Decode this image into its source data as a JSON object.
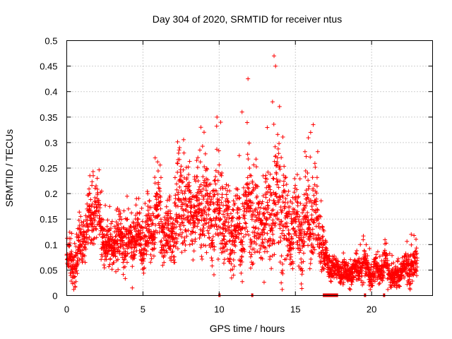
{
  "chart_data": {
    "type": "scatter",
    "title": "Day 304 of 2020, SRMTID for receiver ntus",
    "xlabel": "GPS time / hours",
    "ylabel": "SRMTID / TECUs",
    "xlim": [
      0,
      24
    ],
    "ylim": [
      0,
      0.5
    ],
    "grid": true,
    "marker": "+",
    "color": "#ff0000",
    "x_ticks": [
      0,
      5,
      10,
      15,
      20
    ],
    "x_tick_labels": [
      "0",
      "5",
      "10",
      "15",
      "20"
    ],
    "y_ticks": [
      0,
      0.05,
      0.1,
      0.15,
      0.2,
      0.25,
      0.3,
      0.35,
      0.4,
      0.45,
      0.5
    ],
    "y_tick_labels": [
      "0",
      "0.05",
      "0.1",
      "0.15",
      "0.2",
      "0.25",
      "0.3",
      "0.35",
      "0.4",
      "0.45",
      "0.5"
    ],
    "series": [
      {
        "name": "SRMTID",
        "envelope_x": [
          0,
          0.5,
          1,
          1.5,
          2,
          2.5,
          3,
          3.5,
          4,
          4.5,
          5,
          5.5,
          6,
          6.5,
          7,
          7.5,
          8,
          8.5,
          9,
          9.5,
          10,
          10.5,
          11,
          11.5,
          12,
          12.5,
          13,
          13.5,
          14,
          14.5,
          15,
          15.5,
          16,
          16.5,
          17,
          17.5,
          18,
          18.5,
          19,
          19.5,
          20,
          20.5,
          21,
          21.5,
          22,
          22.5,
          23
        ],
        "envelope_mean": [
          0.07,
          0.06,
          0.11,
          0.14,
          0.17,
          0.1,
          0.1,
          0.11,
          0.1,
          0.12,
          0.1,
          0.12,
          0.16,
          0.11,
          0.13,
          0.19,
          0.17,
          0.16,
          0.18,
          0.15,
          0.17,
          0.13,
          0.14,
          0.13,
          0.18,
          0.13,
          0.15,
          0.16,
          0.2,
          0.12,
          0.15,
          0.12,
          0.16,
          0.13,
          0.07,
          0.05,
          0.05,
          0.04,
          0.05,
          0.06,
          0.04,
          0.05,
          0.06,
          0.03,
          0.05,
          0.06,
          0.06
        ],
        "envelope_spread": [
          0.03,
          0.03,
          0.04,
          0.04,
          0.05,
          0.04,
          0.04,
          0.04,
          0.04,
          0.04,
          0.04,
          0.05,
          0.07,
          0.04,
          0.06,
          0.08,
          0.07,
          0.06,
          0.08,
          0.07,
          0.09,
          0.06,
          0.07,
          0.06,
          0.1,
          0.06,
          0.07,
          0.08,
          0.12,
          0.06,
          0.07,
          0.06,
          0.08,
          0.06,
          0.03,
          0.02,
          0.02,
          0.02,
          0.02,
          0.03,
          0.02,
          0.02,
          0.03,
          0.02,
          0.02,
          0.03,
          0.03
        ],
        "peaks": [
          {
            "x": 2.0,
            "y": 0.23
          },
          {
            "x": 5.8,
            "y": 0.27
          },
          {
            "x": 7.4,
            "y": 0.29
          },
          {
            "x": 8.8,
            "y": 0.33
          },
          {
            "x": 10.1,
            "y": 0.34
          },
          {
            "x": 11.5,
            "y": 0.36
          },
          {
            "x": 13.6,
            "y": 0.47
          },
          {
            "x": 13.7,
            "y": 0.45
          },
          {
            "x": 13.5,
            "y": 0.38
          },
          {
            "x": 16.0,
            "y": 0.32
          },
          {
            "x": 4.3,
            "y": 0.015
          },
          {
            "x": 22.6,
            "y": 0.12
          }
        ]
      }
    ],
    "gap_markers": [
      {
        "x_start": 9.95,
        "x_end": 10.05
      },
      {
        "x_start": 12.1,
        "x_end": 12.2
      },
      {
        "x_start": 16.8,
        "x_end": 17.8
      },
      {
        "x_start": 19.5,
        "x_end": 19.6
      },
      {
        "x_start": 20.75,
        "x_end": 20.85
      }
    ]
  }
}
